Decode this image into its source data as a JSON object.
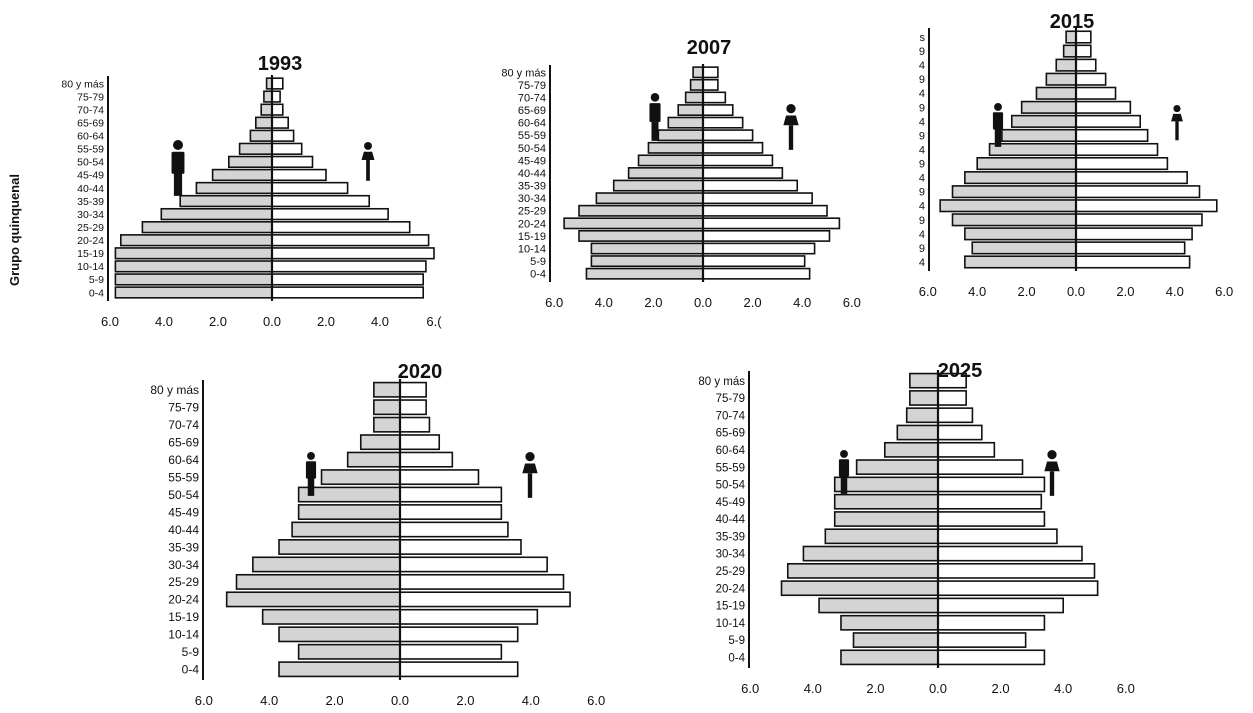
{
  "shared": {
    "age_groups": [
      "0-4",
      "5-9",
      "10-14",
      "15-19",
      "20-24",
      "25-29",
      "30-34",
      "35-39",
      "40-44",
      "45-49",
      "50-54",
      "55-59",
      "60-64",
      "65-69",
      "70-74",
      "75-79",
      "80 y más"
    ],
    "age_groups_short": [
      "4",
      "9",
      "4",
      "9",
      "4",
      "9",
      "4",
      "9",
      "4",
      "9",
      "4",
      "9",
      "4",
      "9",
      "4",
      "9",
      "s"
    ],
    "y_axis_label": "Grupo quinquenal",
    "x_tick_labels": [
      "6.0",
      "4.0",
      "2.0",
      "0.0",
      "2.0",
      "4.0",
      "6.0"
    ],
    "x_tick_labels_1993": [
      "6.0",
      "4.0",
      "2.0",
      "0.0",
      "2.0",
      "4.0",
      "6.("
    ],
    "male_color": "#d4d4d4",
    "female_color": "#ffffff",
    "icons": [
      "male-figure-icon",
      "female-figure-icon"
    ]
  },
  "chart_data": [
    {
      "type": "bar",
      "title": "1993",
      "categories": [
        "0-4",
        "5-9",
        "10-14",
        "15-19",
        "20-24",
        "25-29",
        "30-34",
        "35-39",
        "40-44",
        "45-49",
        "50-54",
        "55-59",
        "60-64",
        "65-69",
        "70-74",
        "75-79",
        "80 y más"
      ],
      "series": [
        {
          "values": [
            5.8,
            5.8,
            5.8,
            5.8,
            5.6,
            4.8,
            4.1,
            3.4,
            2.8,
            2.2,
            1.6,
            1.2,
            0.8,
            0.6,
            0.4,
            0.3,
            0.2
          ]
        },
        {
          "values": [
            5.6,
            5.6,
            5.7,
            6.0,
            5.8,
            5.1,
            4.3,
            3.6,
            2.8,
            2.0,
            1.5,
            1.1,
            0.8,
            0.6,
            0.4,
            0.3,
            0.4
          ]
        }
      ],
      "xlim": [
        -6,
        6
      ]
    },
    {
      "type": "bar",
      "title": "2007",
      "categories": [
        "0-4",
        "5-9",
        "10-14",
        "15-19",
        "20-24",
        "25-29",
        "30-34",
        "35-39",
        "40-44",
        "45-49",
        "50-54",
        "55-59",
        "60-64",
        "65-69",
        "70-74",
        "75-79",
        "80 y más"
      ],
      "series": [
        {
          "values": [
            4.7,
            4.5,
            4.5,
            5.0,
            5.6,
            5.0,
            4.3,
            3.6,
            3.0,
            2.6,
            2.2,
            1.8,
            1.4,
            1.0,
            0.7,
            0.5,
            0.4
          ]
        },
        {
          "values": [
            4.3,
            4.1,
            4.5,
            5.1,
            5.5,
            5.0,
            4.4,
            3.8,
            3.2,
            2.8,
            2.4,
            2.0,
            1.6,
            1.2,
            0.9,
            0.6,
            0.6
          ]
        }
      ],
      "xlim": [
        -6,
        6
      ]
    },
    {
      "type": "bar",
      "title": "2015",
      "categories": [
        "0-4",
        "5-9",
        "10-14",
        "15-19",
        "20-24",
        "25-29",
        "30-34",
        "35-39",
        "40-44",
        "45-49",
        "50-54",
        "55-59",
        "60-64",
        "65-69",
        "70-74",
        "75-79",
        "80 y más"
      ],
      "series": [
        {
          "values": [
            4.5,
            4.2,
            4.5,
            5.0,
            5.5,
            5.0,
            4.5,
            4.0,
            3.5,
            3.0,
            2.6,
            2.2,
            1.6,
            1.2,
            0.8,
            0.5,
            0.4
          ]
        },
        {
          "values": [
            4.6,
            4.4,
            4.7,
            5.1,
            5.7,
            5.0,
            4.5,
            3.7,
            3.3,
            2.9,
            2.6,
            2.2,
            1.6,
            1.2,
            0.8,
            0.6,
            0.6
          ]
        }
      ],
      "xlim": [
        -6,
        6
      ]
    },
    {
      "type": "bar",
      "title": "2020",
      "categories": [
        "0-4",
        "5-9",
        "10-14",
        "15-19",
        "20-24",
        "25-29",
        "30-34",
        "35-39",
        "40-44",
        "45-49",
        "50-54",
        "55-59",
        "60-64",
        "65-69",
        "70-74",
        "75-79",
        "80 y más"
      ],
      "series": [
        {
          "values": [
            3.7,
            3.1,
            3.7,
            4.2,
            5.3,
            5.0,
            4.5,
            3.7,
            3.3,
            3.1,
            3.1,
            2.4,
            1.6,
            1.2,
            0.8,
            0.8,
            0.8
          ]
        },
        {
          "values": [
            3.6,
            3.1,
            3.6,
            4.2,
            5.2,
            5.0,
            4.5,
            3.7,
            3.3,
            3.1,
            3.1,
            2.4,
            1.6,
            1.2,
            0.9,
            0.8,
            0.8
          ]
        }
      ],
      "xlim": [
        -6,
        6
      ]
    },
    {
      "type": "bar",
      "title": "2025",
      "categories": [
        "0-4",
        "5-9",
        "10-14",
        "15-19",
        "20-24",
        "25-29",
        "30-34",
        "35-39",
        "40-44",
        "45-49",
        "50-54",
        "55-59",
        "60-64",
        "65-69",
        "70-74",
        "75-79",
        "80 y más"
      ],
      "series": [
        {
          "values": [
            3.1,
            2.7,
            3.1,
            3.8,
            5.0,
            4.8,
            4.3,
            3.6,
            3.3,
            3.3,
            3.3,
            2.6,
            1.7,
            1.3,
            1.0,
            0.9,
            0.9
          ]
        },
        {
          "values": [
            3.4,
            2.8,
            3.4,
            4.0,
            5.1,
            5.0,
            4.6,
            3.8,
            3.4,
            3.3,
            3.4,
            2.7,
            1.8,
            1.4,
            1.1,
            0.9,
            0.9
          ]
        }
      ],
      "xlim": [
        -6,
        6
      ]
    }
  ]
}
